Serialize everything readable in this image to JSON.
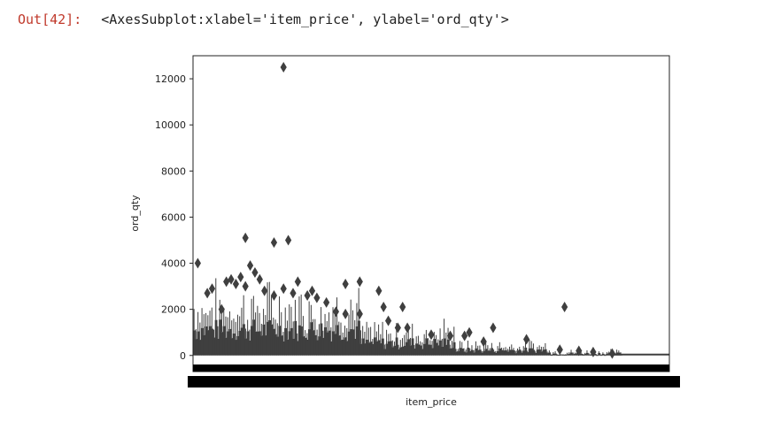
{
  "cell": {
    "prompt": "Out[42]:",
    "repr": "<AxesSubplot:xlabel='item_price', ylabel='ord_qty'>"
  },
  "colors": {
    "plot": "#3f3f3f",
    "prompt": "#c0392b"
  },
  "chart_data": {
    "type": "box",
    "xlabel": "item_price",
    "ylabel": "ord_qty",
    "ylim": [
      -700,
      13000
    ],
    "yticks": [
      0,
      2000,
      4000,
      6000,
      8000,
      10000,
      12000
    ],
    "grid": false,
    "legend": "none",
    "outliers": [
      {
        "x": 0.01,
        "y": 4000
      },
      {
        "x": 0.03,
        "y": 2700
      },
      {
        "x": 0.04,
        "y": 2900
      },
      {
        "x": 0.06,
        "y": 2000
      },
      {
        "x": 0.07,
        "y": 3200
      },
      {
        "x": 0.08,
        "y": 3300
      },
      {
        "x": 0.09,
        "y": 3100
      },
      {
        "x": 0.1,
        "y": 3400
      },
      {
        "x": 0.11,
        "y": 3000
      },
      {
        "x": 0.11,
        "y": 5100
      },
      {
        "x": 0.12,
        "y": 3900
      },
      {
        "x": 0.13,
        "y": 3600
      },
      {
        "x": 0.14,
        "y": 3300
      },
      {
        "x": 0.15,
        "y": 2800
      },
      {
        "x": 0.17,
        "y": 2600
      },
      {
        "x": 0.17,
        "y": 4900
      },
      {
        "x": 0.19,
        "y": 2900
      },
      {
        "x": 0.19,
        "y": 12500
      },
      {
        "x": 0.2,
        "y": 5000
      },
      {
        "x": 0.21,
        "y": 2700
      },
      {
        "x": 0.22,
        "y": 3200
      },
      {
        "x": 0.24,
        "y": 2600
      },
      {
        "x": 0.25,
        "y": 2800
      },
      {
        "x": 0.26,
        "y": 2500
      },
      {
        "x": 0.28,
        "y": 2300
      },
      {
        "x": 0.3,
        "y": 1900
      },
      {
        "x": 0.32,
        "y": 3100
      },
      {
        "x": 0.32,
        "y": 1800
      },
      {
        "x": 0.35,
        "y": 3200
      },
      {
        "x": 0.35,
        "y": 1800
      },
      {
        "x": 0.39,
        "y": 2800
      },
      {
        "x": 0.4,
        "y": 2100
      },
      {
        "x": 0.41,
        "y": 1500
      },
      {
        "x": 0.43,
        "y": 1200
      },
      {
        "x": 0.44,
        "y": 2100
      },
      {
        "x": 0.45,
        "y": 1200
      },
      {
        "x": 0.5,
        "y": 900
      },
      {
        "x": 0.54,
        "y": 850
      },
      {
        "x": 0.57,
        "y": 850
      },
      {
        "x": 0.58,
        "y": 1000
      },
      {
        "x": 0.61,
        "y": 600
      },
      {
        "x": 0.63,
        "y": 1200
      },
      {
        "x": 0.7,
        "y": 700
      },
      {
        "x": 0.77,
        "y": 250
      },
      {
        "x": 0.78,
        "y": 2100
      },
      {
        "x": 0.81,
        "y": 200
      },
      {
        "x": 0.84,
        "y": 150
      },
      {
        "x": 0.88,
        "y": 80
      }
    ]
  }
}
